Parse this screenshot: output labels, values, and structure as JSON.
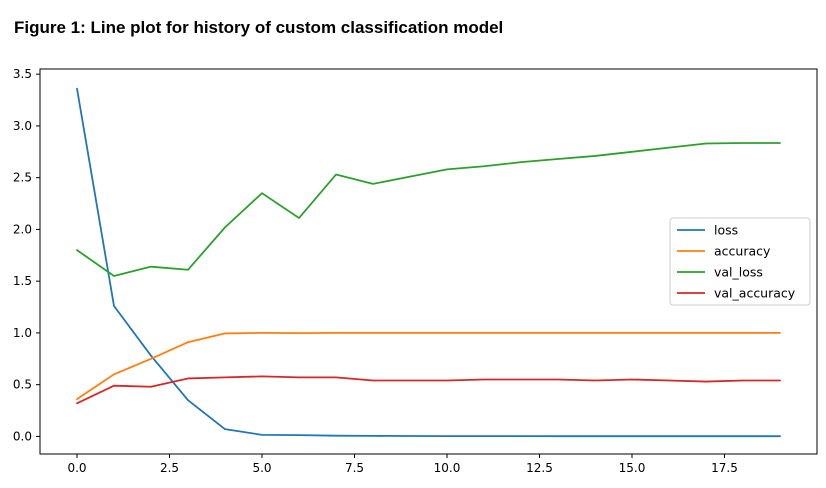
{
  "figure": {
    "caption": "Figure 1: Line plot for history of custom classification model"
  },
  "chart_data": {
    "type": "line",
    "title": "",
    "xlabel": "",
    "ylabel": "",
    "xlim": [
      -1,
      20
    ],
    "ylim": [
      -0.17,
      3.55
    ],
    "xticks": [
      0.0,
      2.5,
      5.0,
      7.5,
      10.0,
      12.5,
      15.0,
      17.5
    ],
    "xtick_labels": [
      "0.0",
      "2.5",
      "5.0",
      "7.5",
      "10.0",
      "12.5",
      "15.0",
      "17.5"
    ],
    "yticks": [
      0.0,
      0.5,
      1.0,
      1.5,
      2.0,
      2.5,
      3.0,
      3.5
    ],
    "ytick_labels": [
      "0.0",
      "0.5",
      "1.0",
      "1.5",
      "2.0",
      "2.5",
      "3.0",
      "3.5"
    ],
    "grid": false,
    "legend_position": "center-right",
    "x": [
      0,
      1,
      2,
      3,
      4,
      5,
      6,
      7,
      8,
      9,
      10,
      11,
      12,
      13,
      14,
      15,
      16,
      17,
      18,
      19
    ],
    "series": [
      {
        "name": "loss",
        "color": "#1f77b4",
        "values": [
          3.36,
          1.26,
          0.78,
          0.35,
          0.07,
          0.015,
          0.012,
          0.007,
          0.005,
          0.004,
          0.003,
          0.003,
          0.003,
          0.002,
          0.002,
          0.002,
          0.002,
          0.002,
          0.002,
          0.002
        ]
      },
      {
        "name": "accuracy",
        "color": "#ff7f0e",
        "values": [
          0.36,
          0.6,
          0.75,
          0.91,
          0.995,
          1.0,
          0.998,
          1.0,
          1.0,
          1.0,
          1.0,
          1.0,
          1.0,
          1.0,
          1.0,
          1.0,
          1.0,
          1.0,
          1.0,
          1.0
        ]
      },
      {
        "name": "val_loss",
        "color": "#2ca02c",
        "values": [
          1.8,
          1.55,
          1.64,
          1.61,
          2.02,
          2.35,
          2.11,
          2.53,
          2.44,
          2.51,
          2.58,
          2.61,
          2.65,
          2.68,
          2.71,
          2.75,
          2.79,
          2.83,
          2.835,
          2.835
        ]
      },
      {
        "name": "val_accuracy",
        "color": "#d62728",
        "values": [
          0.32,
          0.49,
          0.48,
          0.56,
          0.57,
          0.58,
          0.57,
          0.57,
          0.54,
          0.54,
          0.54,
          0.55,
          0.55,
          0.55,
          0.54,
          0.55,
          0.54,
          0.53,
          0.54,
          0.54
        ]
      }
    ]
  }
}
